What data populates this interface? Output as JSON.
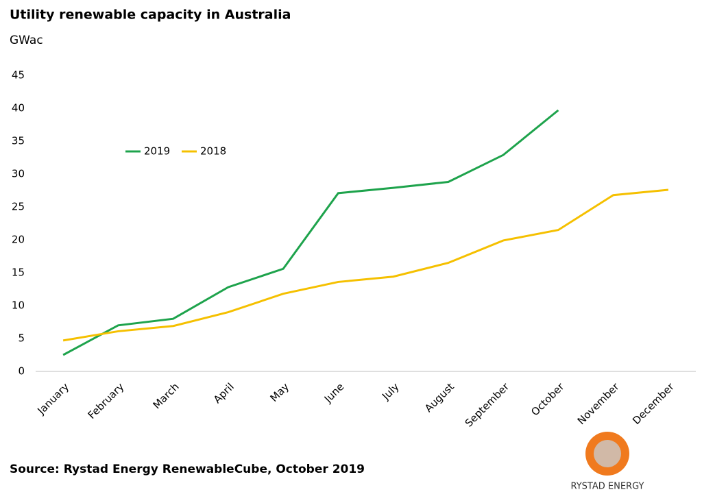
{
  "chart_data": {
    "type": "line",
    "title": "Utility renewable capacity in Australia",
    "subtitle": "GWac",
    "source": "Source: Rystad Energy RenewableCube, October 2019",
    "logo_text": "RYSTAD ENERGY",
    "categories": [
      "January",
      "February",
      "March",
      "April",
      "May",
      "June",
      "July",
      "August",
      "September",
      "October",
      "November",
      "December"
    ],
    "series": [
      {
        "name": "2019",
        "color": "#1ea34c",
        "values": [
          2.5,
          7.0,
          8.0,
          12.8,
          15.6,
          27.1,
          27.9,
          28.8,
          32.9,
          39.7,
          null,
          null
        ]
      },
      {
        "name": "2018",
        "color": "#f5c000",
        "values": [
          4.7,
          6.1,
          6.9,
          9.0,
          11.8,
          13.6,
          14.4,
          16.5,
          19.9,
          21.5,
          26.8,
          27.6
        ]
      }
    ],
    "ylim": [
      0,
      45
    ],
    "yticks": [
      0,
      5,
      10,
      15,
      20,
      25,
      30,
      35,
      40,
      45
    ],
    "grid": false
  }
}
